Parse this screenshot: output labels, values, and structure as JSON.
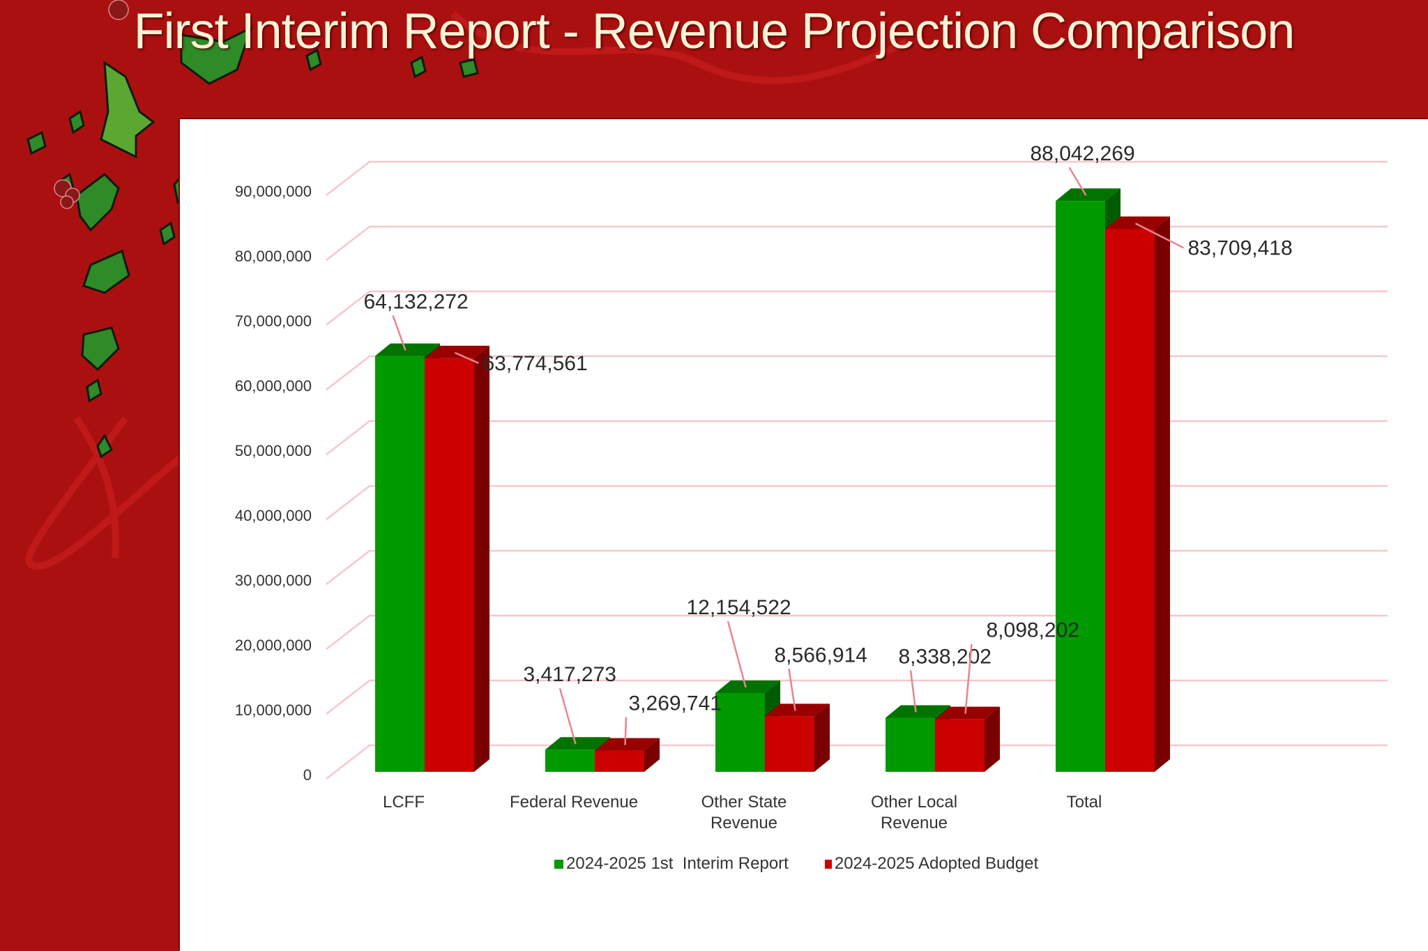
{
  "slide": {
    "title": "First Interim Report - Revenue Projection Comparison",
    "background_color": "#ab1010"
  },
  "chart_data": {
    "type": "bar",
    "style": "3d-clustered-column",
    "title": "",
    "xlabel": "",
    "ylabel": "",
    "categories": [
      "LCFF",
      "Federal Revenue",
      "Other State Revenue",
      "Other Local Revenue",
      "Total"
    ],
    "category_lines": [
      [
        "LCFF"
      ],
      [
        "Federal Revenue"
      ],
      [
        "Other State",
        "Revenue"
      ],
      [
        "Other Local",
        "Revenue"
      ],
      [
        "Total"
      ]
    ],
    "series": [
      {
        "name": "2024-2025 1st  Interim Report",
        "color": "#009900",
        "values": [
          64132272,
          3417273,
          12154522,
          8338202,
          88042269
        ],
        "labels": [
          "64,132,272",
          "3,417,273",
          "12,154,522",
          "8,338,202",
          "88,042,269"
        ]
      },
      {
        "name": "2024-2025 Adopted Budget",
        "color": "#cc0000",
        "values": [
          63774561,
          3269741,
          8566914,
          8098202,
          83709418
        ],
        "labels": [
          "63,774,561",
          "3,269,741",
          "8,566,914",
          "8,098,202",
          "83,709,418"
        ]
      }
    ],
    "yticks": [
      0,
      10000000,
      20000000,
      30000000,
      40000000,
      50000000,
      60000000,
      70000000,
      80000000,
      90000000
    ],
    "ytick_labels": [
      "0",
      "10,000,000",
      "20,000,000",
      "30,000,000",
      "40,000,000",
      "50,000,000",
      "60,000,000",
      "70,000,000",
      "80,000,000",
      "90,000,000"
    ],
    "ylim": [
      0,
      90000000
    ],
    "grid": true,
    "legend_position": "bottom"
  }
}
